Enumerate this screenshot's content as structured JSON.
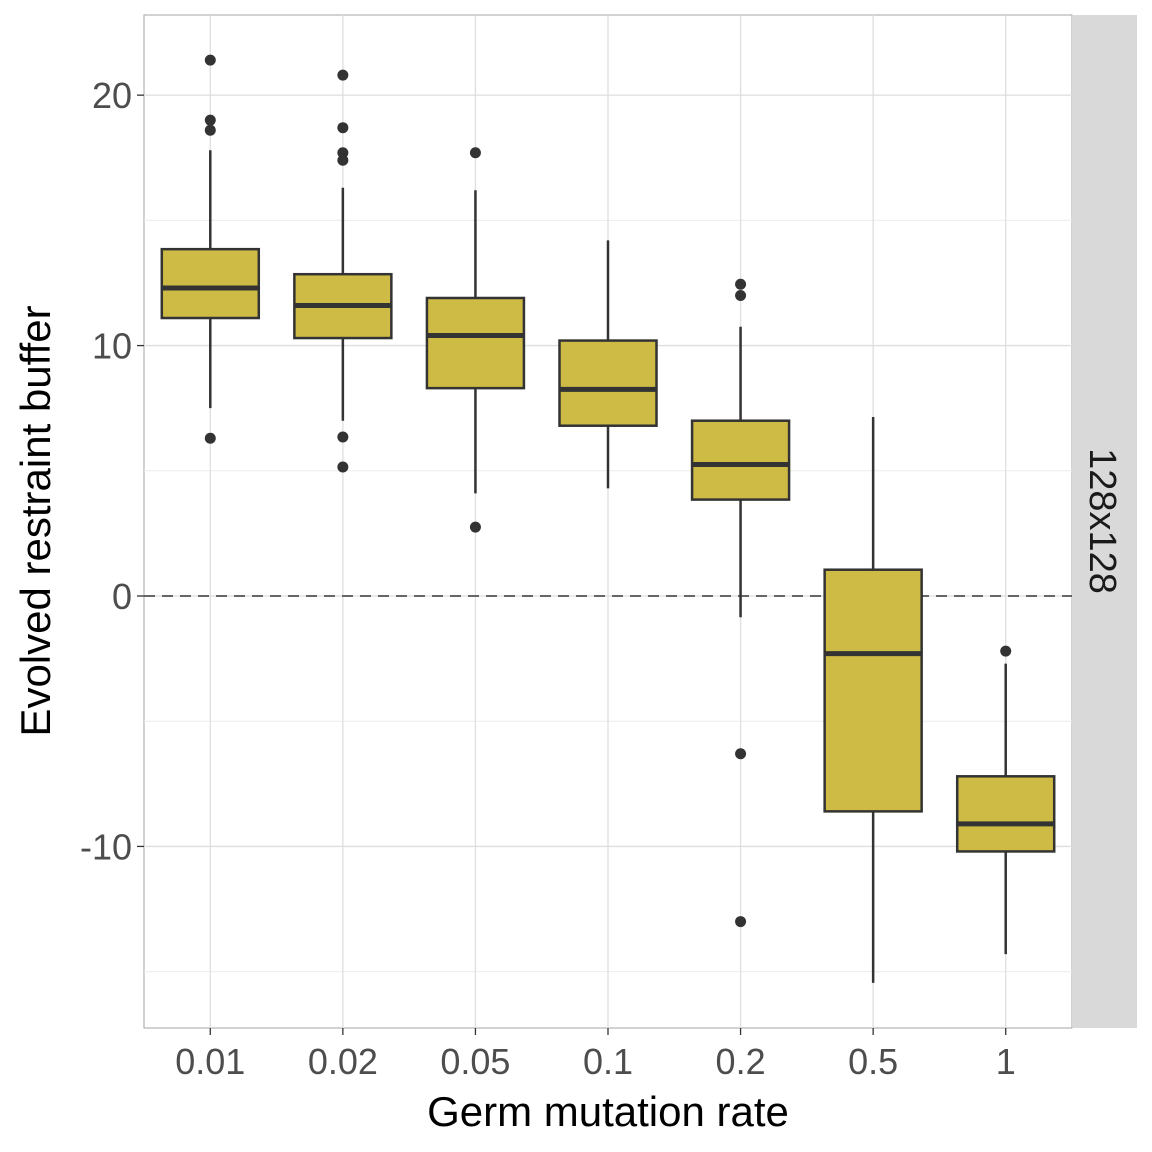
{
  "chart_data": {
    "type": "box",
    "title": "",
    "xlabel": "Germ mutation rate",
    "ylabel": "Evolved restraint buffer",
    "facet_label": "128x128",
    "categories": [
      "0.01",
      "0.02",
      "0.05",
      "0.1",
      "0.2",
      "0.5",
      "1"
    ],
    "ylim": [
      -17.25,
      23.2
    ],
    "yticks": [
      -10,
      0,
      10,
      20
    ],
    "ytick_labels": [
      "-10",
      "0",
      "10",
      "20"
    ],
    "minor_gridlines": [
      -15,
      -5,
      5,
      15
    ],
    "reference_line": 0,
    "fill_color": "#cdbb45",
    "boxes": [
      {
        "whisker_low": 7.5,
        "q1": 11.1,
        "median": 12.3,
        "q3": 13.85,
        "whisker_high": 17.8,
        "outliers": [
          21.4,
          19.0,
          18.6,
          6.3
        ]
      },
      {
        "whisker_low": 7.0,
        "q1": 10.3,
        "median": 11.6,
        "q3": 12.85,
        "whisker_high": 16.3,
        "outliers": [
          20.8,
          18.7,
          17.7,
          17.4,
          6.35,
          5.15
        ]
      },
      {
        "whisker_low": 4.1,
        "q1": 8.3,
        "median": 10.4,
        "q3": 11.9,
        "whisker_high": 16.2,
        "outliers": [
          17.7,
          2.75
        ]
      },
      {
        "whisker_low": 4.3,
        "q1": 6.8,
        "median": 8.25,
        "q3": 10.2,
        "whisker_high": 14.2,
        "outliers": []
      },
      {
        "whisker_low": -0.85,
        "q1": 3.85,
        "median": 5.25,
        "q3": 7.0,
        "whisker_high": 10.75,
        "outliers": [
          12.45,
          12.0,
          -6.3,
          -13.0
        ]
      },
      {
        "whisker_low": -15.45,
        "q1": -8.6,
        "median": -2.3,
        "q3": 1.05,
        "whisker_high": 7.15,
        "outliers": []
      },
      {
        "whisker_low": -14.3,
        "q1": -10.2,
        "median": -9.1,
        "q3": -7.2,
        "whisker_high": -2.7,
        "outliers": [
          -2.2
        ]
      }
    ]
  }
}
